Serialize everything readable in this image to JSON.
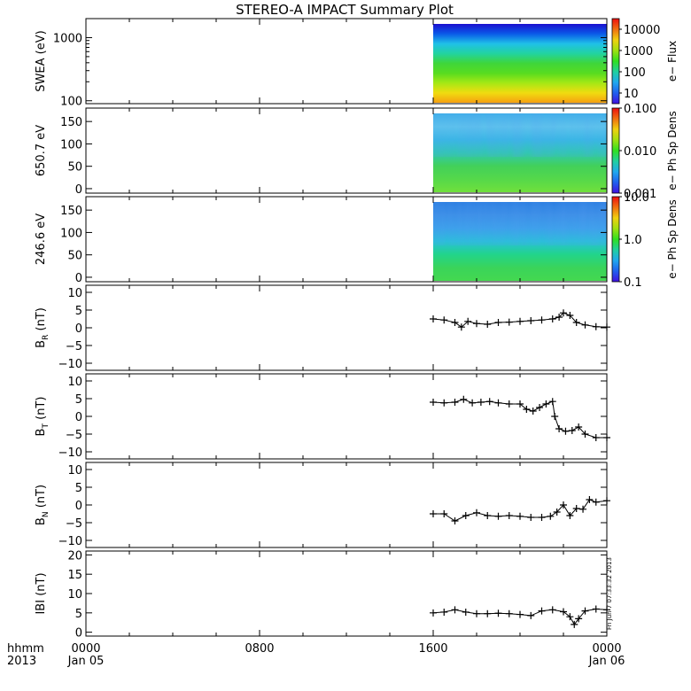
{
  "title": "STEREO-A IMPACT Summary Plot",
  "side_stamp": "Fri Jun  7 07:33:32 2013",
  "time_axis": {
    "row1_labels": [
      "0000",
      "0800",
      "1600",
      "0000"
    ],
    "row2_labels": [
      "Jan 05",
      "",
      "",
      "Jan 06"
    ],
    "corner_top": "hhmm",
    "corner_bottom": "2013",
    "range_hours": [
      0,
      24
    ]
  },
  "colorbars": [
    {
      "label": "e− Flux",
      "ticks": [
        "10000",
        "1000",
        "100",
        "10"
      ],
      "range_log10": [
        0.5,
        4.5
      ],
      "scale": "log"
    },
    {
      "label": "e− Ph Sp Dens",
      "ticks": [
        "0.100",
        "0.010",
        "0.001"
      ],
      "range_log10": [
        -3,
        -1
      ],
      "scale": "log"
    },
    {
      "label": "e− Ph Sp Dens",
      "ticks": [
        "10.0",
        "1.0",
        "0.1"
      ],
      "range_log10": [
        -1,
        1
      ],
      "scale": "log"
    }
  ],
  "chart_data": [
    {
      "type": "heatmap",
      "ylabel": "SWEA (eV)",
      "yscale": "log",
      "ylim": [
        90,
        2000
      ],
      "yticks": [
        100,
        1000
      ],
      "ytick_labels": [
        "100",
        "1000"
      ],
      "data_start_hour": 16.0,
      "data_end_hour": 24.0,
      "color_profile": [
        "#1a0fd0",
        "#0a5ae8",
        "#1fc0e8",
        "#22d3a0",
        "#3fd63a",
        "#58dc20",
        "#a6e815",
        "#f0dc10",
        "#f6a010"
      ],
      "colorbar": 0
    },
    {
      "type": "heatmap",
      "ylabel": "650.7 eV",
      "yscale": "linear",
      "ylim": [
        -10,
        180
      ],
      "yticks": [
        0,
        50,
        100,
        150
      ],
      "ytick_labels": [
        "0",
        "50",
        "100",
        "150"
      ],
      "data_start_hour": 16.0,
      "data_end_hour": 24.0,
      "color_profile": [
        "#40b0e8",
        "#5ec4ec",
        "#38b8e4",
        "#30c8b0",
        "#42d05a",
        "#55d84a",
        "#70e03c"
      ],
      "colorbar": 1
    },
    {
      "type": "heatmap",
      "ylabel": "246.6 eV",
      "yscale": "linear",
      "ylim": [
        -10,
        180
      ],
      "yticks": [
        0,
        50,
        100,
        150
      ],
      "ytick_labels": [
        "0",
        "50",
        "100",
        "150"
      ],
      "data_start_hour": 16.0,
      "data_end_hour": 24.0,
      "color_profile": [
        "#2a7ce0",
        "#3a8ee6",
        "#3aa0ea",
        "#28c0d8",
        "#22d48a",
        "#3ad45a",
        "#44d850"
      ],
      "colorbar": 2
    },
    {
      "type": "scatter",
      "ylabel": "B_R (nT)",
      "ylabel_main": "B",
      "ylabel_sub": "R",
      "ylabel_unit": "(nT)",
      "ylim": [
        -12,
        12
      ],
      "yticks": [
        -10,
        -5,
        0,
        5,
        10
      ],
      "ytick_labels": [
        "−10",
        "−5",
        "0",
        "5",
        "10"
      ],
      "x_hours": [
        16.0,
        16.5,
        17.0,
        17.3,
        17.6,
        18.0,
        18.5,
        19.0,
        19.5,
        20.0,
        20.5,
        21.0,
        21.5,
        21.8,
        22.0,
        22.3,
        22.6,
        23.0,
        23.5,
        24.0
      ],
      "y": [
        2.5,
        2.2,
        1.5,
        0.2,
        1.8,
        1.2,
        1.0,
        1.5,
        1.6,
        1.8,
        2.0,
        2.2,
        2.5,
        3.0,
        4.2,
        3.5,
        1.5,
        0.8,
        0.3,
        0.2
      ]
    },
    {
      "type": "scatter",
      "ylabel": "B_T (nT)",
      "ylabel_main": "B",
      "ylabel_sub": "T",
      "ylabel_unit": "(nT)",
      "ylim": [
        -12,
        12
      ],
      "yticks": [
        -10,
        -5,
        0,
        5,
        10
      ],
      "ytick_labels": [
        "−10",
        "−5",
        "0",
        "5",
        "10"
      ],
      "x_hours": [
        16.0,
        16.5,
        17.0,
        17.4,
        17.8,
        18.2,
        18.6,
        19.0,
        19.5,
        20.0,
        20.3,
        20.6,
        20.9,
        21.2,
        21.5,
        21.6,
        21.8,
        22.1,
        22.4,
        22.7,
        23.0,
        23.5,
        24.0
      ],
      "y": [
        4.0,
        3.8,
        4.0,
        4.8,
        3.8,
        4.0,
        4.2,
        3.8,
        3.5,
        3.5,
        2.0,
        1.5,
        2.5,
        3.5,
        4.2,
        0.0,
        -3.5,
        -4.2,
        -4.0,
        -3.0,
        -5.0,
        -6.0,
        -6.0
      ]
    },
    {
      "type": "scatter",
      "ylabel": "B_N (nT)",
      "ylabel_main": "B",
      "ylabel_sub": "N",
      "ylabel_unit": "(nT)",
      "ylim": [
        -12,
        12
      ],
      "yticks": [
        -10,
        -5,
        0,
        5,
        10
      ],
      "ytick_labels": [
        "−10",
        "−5",
        "0",
        "5",
        "10"
      ],
      "x_hours": [
        16.0,
        16.5,
        17.0,
        17.5,
        18.0,
        18.5,
        19.0,
        19.5,
        20.0,
        20.5,
        21.0,
        21.4,
        21.7,
        22.0,
        22.3,
        22.6,
        22.9,
        23.2,
        23.5,
        24.0
      ],
      "y": [
        -2.5,
        -2.5,
        -4.5,
        -3.0,
        -2.2,
        -3.0,
        -3.2,
        -3.0,
        -3.2,
        -3.5,
        -3.5,
        -3.2,
        -2.0,
        0.0,
        -3.0,
        -1.0,
        -1.2,
        1.5,
        0.8,
        1.2
      ]
    },
    {
      "type": "scatter",
      "ylabel": "|B| (nT)",
      "ylabel_main": "IBI",
      "ylabel_sub": "",
      "ylabel_unit": "(nT)",
      "ylim": [
        -1,
        21
      ],
      "yticks": [
        0,
        5,
        10,
        15,
        20
      ],
      "ytick_labels": [
        "0",
        "5",
        "10",
        "15",
        "20"
      ],
      "x_hours": [
        16.0,
        16.5,
        17.0,
        17.5,
        18.0,
        18.5,
        19.0,
        19.5,
        20.0,
        20.5,
        21.0,
        21.5,
        22.0,
        22.3,
        22.5,
        22.7,
        23.0,
        23.5,
        24.0
      ],
      "y": [
        5.0,
        5.2,
        5.8,
        5.2,
        4.8,
        4.8,
        4.9,
        4.8,
        4.6,
        4.3,
        5.5,
        5.8,
        5.3,
        4.0,
        2.0,
        3.5,
        5.5,
        6.0,
        5.8
      ]
    }
  ]
}
